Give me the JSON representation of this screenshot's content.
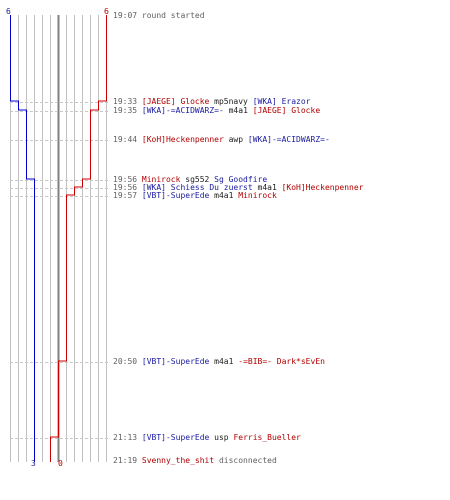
{
  "scores": {
    "blue_start": "6",
    "red_start": "6",
    "blue_end": "3",
    "red_end": "0"
  },
  "colors": {
    "blue_team": "#0000cc",
    "red_team": "#cc0000",
    "grid": "#bfbfbf",
    "center_line": "#808080",
    "dashed": "#c8c8c8"
  },
  "events": [
    {
      "time": "19:07",
      "parts": [
        {
          "text": "round started",
          "cls": "txt"
        }
      ]
    },
    {
      "time": "19:33",
      "parts": [
        {
          "text": "[JAEGE] Glocke",
          "cls": "red"
        },
        {
          "text": " mp5navy ",
          "cls": "blk"
        },
        {
          "text": "[WKA] Erazor",
          "cls": "blue"
        }
      ]
    },
    {
      "time": "19:35",
      "parts": [
        {
          "text": "[WKA]-=ACIDWARZ=-",
          "cls": "blue"
        },
        {
          "text": " m4a1 ",
          "cls": "blk"
        },
        {
          "text": "[JAEGE] Glocke",
          "cls": "red"
        }
      ]
    },
    {
      "time": "19:44",
      "parts": [
        {
          "text": "[KoH]Heckenpenner",
          "cls": "red"
        },
        {
          "text": " awp ",
          "cls": "blk"
        },
        {
          "text": "[WKA]-=ACIDWARZ=-",
          "cls": "blue"
        }
      ]
    },
    {
      "time": "19:56",
      "parts": [
        {
          "text": "Minirock",
          "cls": "red"
        },
        {
          "text": " sg552 ",
          "cls": "blk"
        },
        {
          "text": "Sg Goodfire",
          "cls": "blue"
        }
      ]
    },
    {
      "time": "19:56",
      "parts": [
        {
          "text": "[WKA] Schiess Du zuerst",
          "cls": "blue"
        },
        {
          "text": " m4a1 ",
          "cls": "blk"
        },
        {
          "text": "[KoH]Heckenpenner",
          "cls": "red"
        }
      ]
    },
    {
      "time": "19:57",
      "parts": [
        {
          "text": "[VBT]-SuperEde",
          "cls": "blue"
        },
        {
          "text": " m4a1 ",
          "cls": "blk"
        },
        {
          "text": "Minirock",
          "cls": "red"
        }
      ]
    },
    {
      "time": "20:50",
      "parts": [
        {
          "text": "[VBT]-SuperEde",
          "cls": "blue"
        },
        {
          "text": " m4a1 ",
          "cls": "blk"
        },
        {
          "text": "-=BIB=- Dark*sEvEn",
          "cls": "red"
        }
      ]
    },
    {
      "time": "21:13",
      "parts": [
        {
          "text": "[VBT]-SuperEde",
          "cls": "blue"
        },
        {
          "text": " usp ",
          "cls": "blk"
        },
        {
          "text": "Ferris_Bueller",
          "cls": "red"
        }
      ]
    },
    {
      "time": "21:19",
      "parts": [
        {
          "text": "Svenny_the_shit",
          "cls": "red"
        },
        {
          "text": " disconnected",
          "cls": "txt"
        }
      ]
    }
  ]
}
